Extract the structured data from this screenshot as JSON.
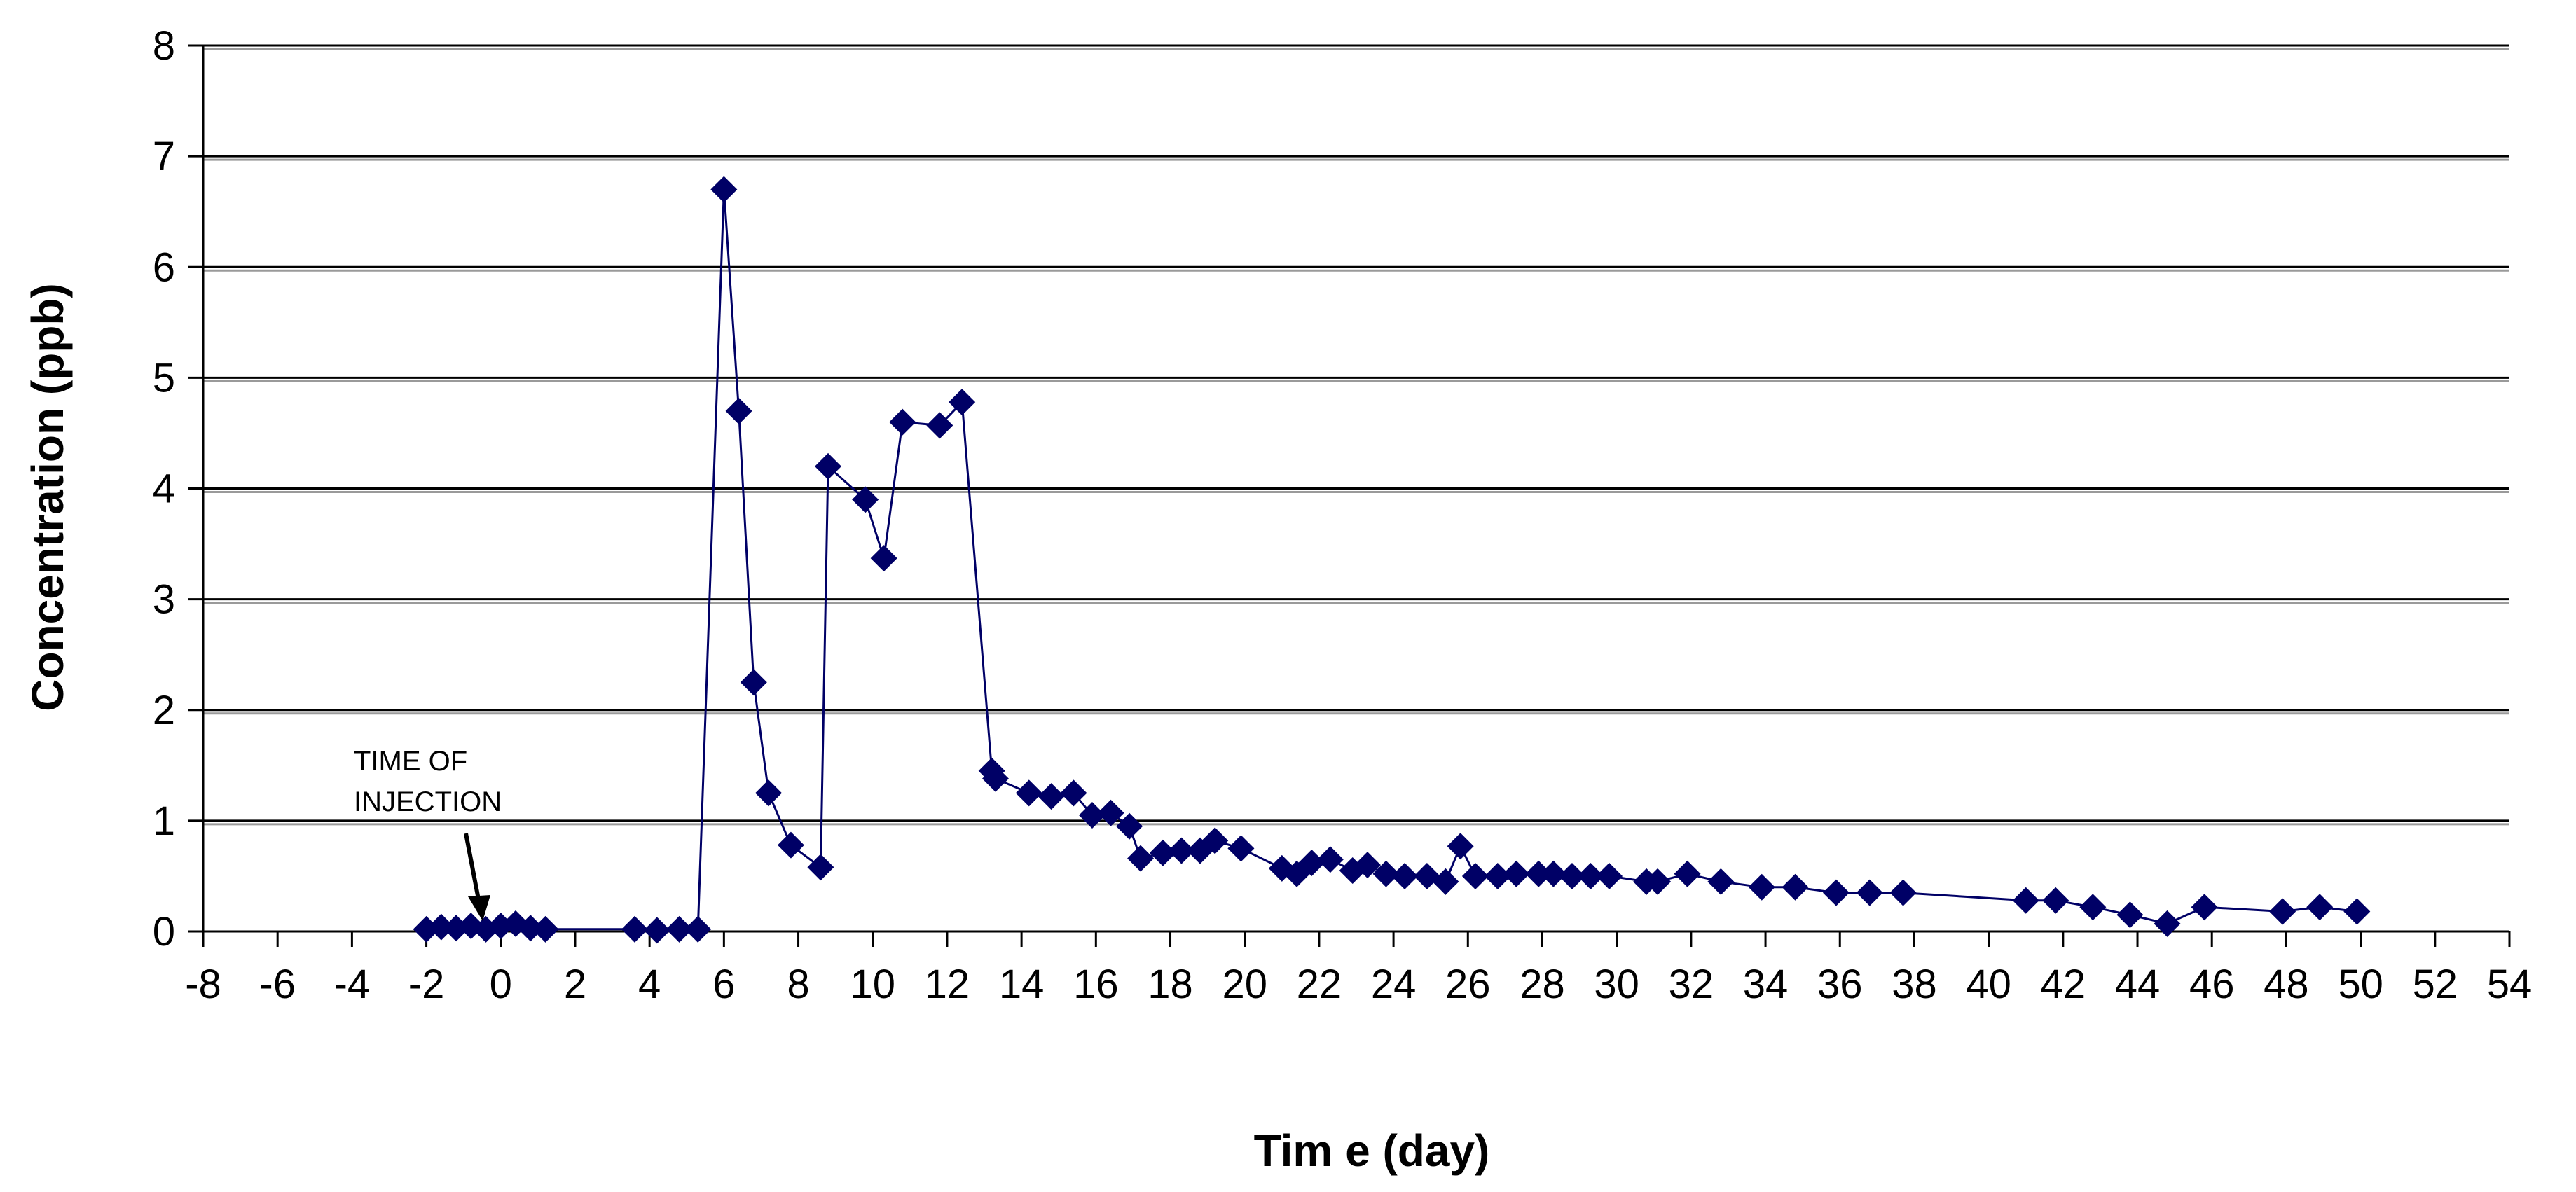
{
  "chart_data": {
    "type": "scatter",
    "title": "",
    "xlabel": "Tim e (day)",
    "ylabel": "Concentration (ppb)",
    "xlim": [
      -8,
      54
    ],
    "ylim": [
      0,
      8
    ],
    "xticks": [
      -8,
      -6,
      -4,
      -2,
      0,
      2,
      4,
      6,
      8,
      10,
      12,
      14,
      16,
      18,
      20,
      22,
      24,
      26,
      28,
      30,
      32,
      34,
      36,
      38,
      40,
      42,
      44,
      46,
      48,
      50,
      52,
      54
    ],
    "yticks": [
      0,
      1,
      2,
      3,
      4,
      5,
      6,
      7,
      8
    ],
    "grid": "horizontal",
    "legend": "none",
    "marker": "diamond",
    "series": [
      {
        "color": "#000066",
        "x": [
          -2.0,
          -1.6,
          -1.2,
          -0.8,
          -0.4,
          0.0,
          0.4,
          0.8,
          1.2,
          3.6,
          4.2,
          4.8,
          5.3,
          6.0,
          6.4,
          6.8,
          7.2,
          7.8,
          8.6,
          8.8,
          9.8,
          10.3,
          10.8,
          11.8,
          12.4,
          13.2,
          13.3,
          14.2,
          14.8,
          15.4,
          15.9,
          16.4,
          16.9,
          17.2,
          17.8,
          18.3,
          18.8,
          19.2,
          19.9,
          21.0,
          21.4,
          21.8,
          22.3,
          22.9,
          23.3,
          23.8,
          24.3,
          24.9,
          25.4,
          25.8,
          26.2,
          26.8,
          27.3,
          27.9,
          28.3,
          28.8,
          29.3,
          29.8,
          30.8,
          31.1,
          31.9,
          32.8,
          33.9,
          34.8,
          35.9,
          36.8,
          37.7,
          41.0,
          41.8,
          42.8,
          43.8,
          44.8,
          45.8,
          47.9,
          48.9,
          49.9
        ],
        "values": [
          0.02,
          0.04,
          0.03,
          0.05,
          0.02,
          0.05,
          0.07,
          0.03,
          0.02,
          0.02,
          0.01,
          0.02,
          0.02,
          6.7,
          4.7,
          2.25,
          1.25,
          0.78,
          0.58,
          4.2,
          3.9,
          3.37,
          4.6,
          4.57,
          4.78,
          1.45,
          1.38,
          1.25,
          1.22,
          1.25,
          1.05,
          1.07,
          0.95,
          0.66,
          0.71,
          0.73,
          0.73,
          0.82,
          0.75,
          0.57,
          0.52,
          0.62,
          0.65,
          0.55,
          0.6,
          0.52,
          0.5,
          0.5,
          0.45,
          0.77,
          0.5,
          0.5,
          0.52,
          0.52,
          0.52,
          0.5,
          0.5,
          0.5,
          0.45,
          0.45,
          0.52,
          0.45,
          0.4,
          0.4,
          0.35,
          0.35,
          0.35,
          0.28,
          0.28,
          0.22,
          0.15,
          0.07,
          0.22,
          0.18,
          0.22,
          0.18
        ]
      }
    ],
    "annotations": [
      {
        "text_line1": "TIME OF",
        "text_line2": "INJECTION",
        "x": -1.0,
        "y": 0.02
      }
    ]
  }
}
